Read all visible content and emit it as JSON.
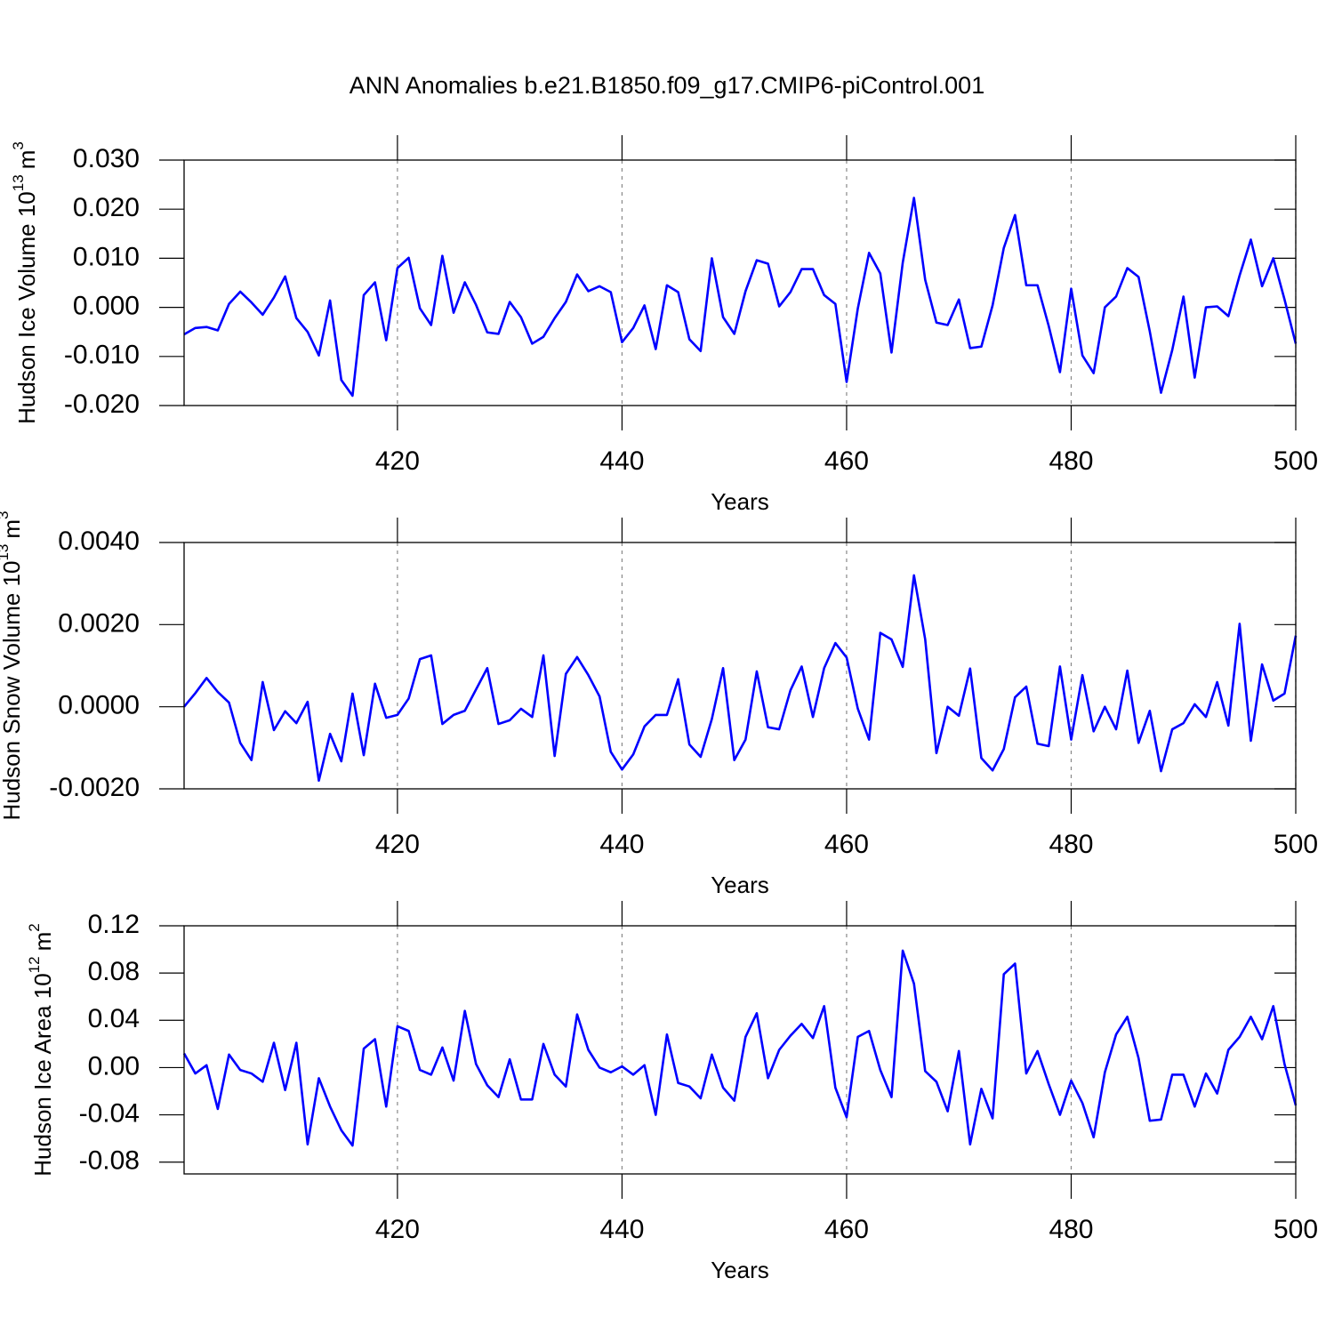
{
  "chart_data": [
    {
      "type": "line",
      "title": "ANN Anomalies b.e21.B1850.f09_g17.CMIP6-piControl.001",
      "ylabel": [
        "Hudson Ice Volume 10",
        "13",
        "m",
        "3"
      ],
      "xlabel": "Years",
      "xlim": [
        401,
        500
      ],
      "xticks": [
        420,
        440,
        460,
        480,
        500
      ],
      "ylim": [
        -0.02,
        0.03
      ],
      "yticks": [
        {
          "value": -0.02,
          "label": "-0.020"
        },
        {
          "value": -0.01,
          "label": "-0.010"
        },
        {
          "value": 0,
          "label": "0.000"
        },
        {
          "value": 0.01,
          "label": "0.010"
        },
        {
          "value": 0.02,
          "label": "0.020"
        },
        {
          "value": 0.03,
          "label": "0.030"
        }
      ],
      "grid": true,
      "x": [
        401,
        402,
        403,
        404,
        405,
        406,
        407,
        408,
        409,
        410,
        411,
        412,
        413,
        414,
        415,
        416,
        417,
        418,
        419,
        420,
        421,
        422,
        423,
        424,
        425,
        426,
        427,
        428,
        429,
        430,
        431,
        432,
        433,
        434,
        435,
        436,
        437,
        438,
        439,
        440,
        441,
        442,
        443,
        444,
        445,
        446,
        447,
        448,
        449,
        450,
        451,
        452,
        453,
        454,
        455,
        456,
        457,
        458,
        459,
        460,
        461,
        462,
        463,
        464,
        465,
        466,
        467,
        468,
        469,
        470,
        471,
        472,
        473,
        474,
        475,
        476,
        477,
        478,
        479,
        480,
        481,
        482,
        483,
        484,
        485,
        486,
        487,
        488,
        489,
        490,
        491,
        492,
        493,
        494,
        495,
        496,
        497,
        498,
        499,
        500
      ],
      "series": [
        {
          "color": "#0000ff",
          "values": [
            -0.0055,
            -0.0042,
            -0.004,
            -0.0047,
            0.0007,
            0.0032,
            0.001,
            -0.0015,
            0.002,
            0.0063,
            -0.0022,
            -0.005,
            -0.0098,
            0.0014,
            -0.0148,
            -0.018,
            0.0025,
            0.0051,
            -0.0067,
            0.008,
            0.0101,
            -0.0002,
            -0.0036,
            0.0105,
            -0.0011,
            0.0051,
            0.0005,
            -0.0051,
            -0.0054,
            0.0011,
            -0.002,
            -0.0074,
            -0.006,
            -0.0022,
            0.0011,
            0.0067,
            0.0033,
            0.0043,
            0.0031,
            -0.0071,
            -0.0042,
            0.0004,
            -0.0085,
            0.0045,
            0.0031,
            -0.0065,
            -0.0089,
            0.01,
            -0.002,
            -0.0054,
            0.0033,
            0.0096,
            0.0089,
            0.0002,
            0.0031,
            0.0078,
            0.0078,
            0.0025,
            0.0007,
            -0.0152,
            -0.0002,
            0.0111,
            0.0069,
            -0.0092,
            0.0091,
            0.0223,
            0.0056,
            -0.0031,
            -0.0036,
            0.0016,
            -0.0083,
            -0.008,
            0.0004,
            0.0121,
            0.0188,
            0.0045,
            0.0045,
            -0.0038,
            -0.0132,
            0.0038,
            -0.0098,
            -0.0134,
            0,
            0.0022,
            0.008,
            0.0062,
            -0.0049,
            -0.0174,
            -0.0087,
            0.0022,
            -0.0143,
            0,
            0.0002,
            -0.0018,
            0.0065,
            0.0138,
            0.0043,
            0.01,
            0.0016,
            -0.0074
          ]
        }
      ]
    },
    {
      "type": "line",
      "ylabel": [
        "Hudson Snow Volume 10",
        "13",
        "m",
        "3"
      ],
      "xlabel": "Years",
      "xlim": [
        401,
        500
      ],
      "xticks": [
        420,
        440,
        460,
        480,
        500
      ],
      "ylim": [
        -0.002,
        0.004
      ],
      "yticks": [
        {
          "value": -0.002,
          "label": "-0.0020"
        },
        {
          "value": 0,
          "label": "0.0000"
        },
        {
          "value": 0.002,
          "label": "0.0020"
        },
        {
          "value": 0.004,
          "label": "0.0040"
        }
      ],
      "grid": true,
      "x": [
        401,
        402,
        403,
        404,
        405,
        406,
        407,
        408,
        409,
        410,
        411,
        412,
        413,
        414,
        415,
        416,
        417,
        418,
        419,
        420,
        421,
        422,
        423,
        424,
        425,
        426,
        427,
        428,
        429,
        430,
        431,
        432,
        433,
        434,
        435,
        436,
        437,
        438,
        439,
        440,
        441,
        442,
        443,
        444,
        445,
        446,
        447,
        448,
        449,
        450,
        451,
        452,
        453,
        454,
        455,
        456,
        457,
        458,
        459,
        460,
        461,
        462,
        463,
        464,
        465,
        466,
        467,
        468,
        469,
        470,
        471,
        472,
        473,
        474,
        475,
        476,
        477,
        478,
        479,
        480,
        481,
        482,
        483,
        484,
        485,
        486,
        487,
        488,
        489,
        490,
        491,
        492,
        493,
        494,
        495,
        496,
        497,
        498,
        499,
        500
      ],
      "series": [
        {
          "color": "#0000ff",
          "values": [
            0,
            0.00033,
            0.0007,
            0.00036,
            0.0001,
            -0.00088,
            -0.0013,
            0.0006,
            -0.00057,
            -0.00011,
            -0.0004,
            0.00012,
            -0.0018,
            -0.00066,
            -0.00133,
            0.00032,
            -0.00118,
            0.00056,
            -0.00027,
            -0.0002,
            0.0002,
            0.00116,
            0.00125,
            -0.00042,
            -0.0002,
            -0.0001,
            0.00042,
            0.00094,
            -0.00042,
            -0.00033,
            -5e-05,
            -0.00025,
            0.00125,
            -0.0012,
            0.0008,
            0.00121,
            0.00077,
            0.00025,
            -0.0011,
            -0.00153,
            -0.00116,
            -0.00048,
            -0.0002,
            -0.0002,
            0.00067,
            -0.00092,
            -0.00122,
            -0.0003,
            0.00094,
            -0.0013,
            -0.0008,
            0.00086,
            -0.0005,
            -0.00055,
            0.0004,
            0.00098,
            -0.00025,
            0.00094,
            0.00155,
            0.0012,
            -5e-05,
            -0.0008,
            0.0018,
            0.00164,
            0.00097,
            0.0032,
            0.00164,
            -0.00113,
            0,
            -0.00022,
            0.00093,
            -0.00125,
            -0.00155,
            -0.00103,
            0.00023,
            0.00049,
            -0.0009,
            -0.00096,
            0.00098,
            -0.0008,
            0.00077,
            -0.0006,
            0,
            -0.00055,
            0.00088,
            -0.00088,
            -0.0001,
            -0.00157,
            -0.00055,
            -0.0004,
            6e-05,
            -0.00025,
            0.0006,
            -0.00046,
            0.00202,
            -0.00083,
            0.00103,
            0.00015,
            0.00032,
            0.00173
          ]
        }
      ]
    },
    {
      "type": "line",
      "ylabel": [
        "Hudson Ice Area 10",
        "12",
        "m",
        "2"
      ],
      "xlabel": "Years",
      "xlim": [
        401,
        500
      ],
      "xticks": [
        420,
        440,
        460,
        480,
        500
      ],
      "ylim": [
        -0.09,
        0.12
      ],
      "yticks": [
        {
          "value": -0.08,
          "label": "-0.08"
        },
        {
          "value": -0.04,
          "label": "-0.04"
        },
        {
          "value": 0,
          "label": "0.00"
        },
        {
          "value": 0.04,
          "label": "0.04"
        },
        {
          "value": 0.08,
          "label": "0.08"
        },
        {
          "value": 0.12,
          "label": "0.12"
        }
      ],
      "grid": true,
      "x": [
        401,
        402,
        403,
        404,
        405,
        406,
        407,
        408,
        409,
        410,
        411,
        412,
        413,
        414,
        415,
        416,
        417,
        418,
        419,
        420,
        421,
        422,
        423,
        424,
        425,
        426,
        427,
        428,
        429,
        430,
        431,
        432,
        433,
        434,
        435,
        436,
        437,
        438,
        439,
        440,
        441,
        442,
        443,
        444,
        445,
        446,
        447,
        448,
        449,
        450,
        451,
        452,
        453,
        454,
        455,
        456,
        457,
        458,
        459,
        460,
        461,
        462,
        463,
        464,
        465,
        466,
        467,
        468,
        469,
        470,
        471,
        472,
        473,
        474,
        475,
        476,
        477,
        478,
        479,
        480,
        481,
        482,
        483,
        484,
        485,
        486,
        487,
        488,
        489,
        490,
        491,
        492,
        493,
        494,
        495,
        496,
        497,
        498,
        499,
        500
      ],
      "series": [
        {
          "color": "#0000ff",
          "values": [
            0.012,
            -0.005,
            0.002,
            -0.035,
            0.011,
            -0.002,
            -0.005,
            -0.012,
            0.021,
            -0.019,
            0.021,
            -0.065,
            -0.009,
            -0.033,
            -0.053,
            -0.066,
            0.016,
            0.024,
            -0.033,
            0.035,
            0.031,
            -0.002,
            -0.006,
            0.017,
            -0.011,
            0.048,
            0.003,
            -0.015,
            -0.025,
            0.007,
            -0.027,
            -0.027,
            0.02,
            -0.006,
            -0.016,
            0.045,
            0.015,
            0,
            -0.004,
            0.001,
            -0.006,
            0.002,
            -0.04,
            0.028,
            -0.013,
            -0.016,
            -0.026,
            0.011,
            -0.017,
            -0.028,
            0.026,
            0.046,
            -0.009,
            0.015,
            0.027,
            0.037,
            0.025,
            0.052,
            -0.017,
            -0.042,
            0.026,
            0.031,
            -0.002,
            -0.025,
            0.099,
            0.071,
            -0.003,
            -0.012,
            -0.037,
            0.014,
            -0.065,
            -0.018,
            -0.043,
            0.079,
            0.088,
            -0.005,
            0.014,
            -0.014,
            -0.04,
            -0.011,
            -0.03,
            -0.059,
            -0.004,
            0.028,
            0.043,
            0.008,
            -0.045,
            -0.044,
            -0.006,
            -0.006,
            -0.033,
            -0.005,
            -0.022,
            0.015,
            0.026,
            0.043,
            0.024,
            0.052,
            0.003,
            -0.032
          ]
        }
      ]
    }
  ]
}
